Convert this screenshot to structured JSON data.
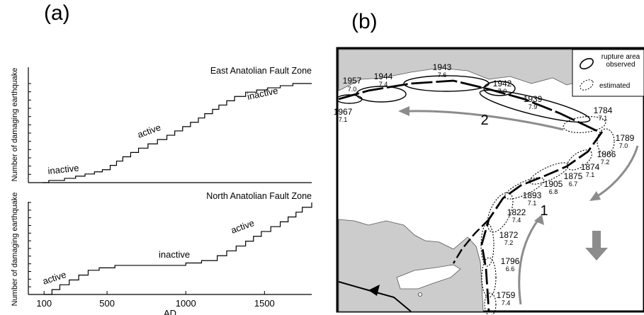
{
  "figure": {
    "panel_a_label": "(a)",
    "panel_b_label": "(b)"
  },
  "chart_data": [
    {
      "type": "line",
      "title": "East Anatolian Fault Zone",
      "ylabel": "Number of damaging earthquake",
      "xlabel": "AD",
      "xlim": [
        0,
        1800
      ],
      "x_ticks": [
        100,
        500,
        1000,
        1500
      ],
      "annotations": [
        {
          "text": "inactive",
          "x": 250,
          "y": 1
        },
        {
          "text": "active",
          "x": 750,
          "y": 11
        },
        {
          "text": "inactive",
          "x": 1450,
          "y": 21
        }
      ],
      "series": [
        {
          "values": [
            [
              90,
              0
            ],
            [
              130,
              0.5
            ],
            [
              230,
              1
            ],
            [
              300,
              1.5
            ],
            [
              360,
              2
            ],
            [
              420,
              2.5
            ],
            [
              470,
              3
            ],
            [
              520,
              4
            ],
            [
              560,
              5
            ],
            [
              600,
              6
            ],
            [
              650,
              7
            ],
            [
              700,
              8
            ],
            [
              760,
              9
            ],
            [
              820,
              10
            ],
            [
              880,
              11
            ],
            [
              930,
              12
            ],
            [
              980,
              13
            ],
            [
              1030,
              14
            ],
            [
              1080,
              15
            ],
            [
              1120,
              16
            ],
            [
              1170,
              17
            ],
            [
              1210,
              18
            ],
            [
              1260,
              19
            ],
            [
              1310,
              20
            ],
            [
              1380,
              21
            ],
            [
              1450,
              21.5
            ],
            [
              1520,
              22
            ],
            [
              1600,
              22.5
            ],
            [
              1680,
              23
            ],
            [
              1800,
              23
            ]
          ]
        }
      ]
    },
    {
      "type": "line",
      "title": "North Anatolian Fault Zone",
      "ylabel": "Number of damaging earthquake",
      "xlabel": "AD",
      "xlim": [
        0,
        1800
      ],
      "x_ticks": [
        100,
        500,
        1000,
        1500
      ],
      "tick_labels": [
        "100",
        "500",
        "1000",
        "1500"
      ],
      "annotations": [
        {
          "text": "active",
          "x": 200,
          "y": 3
        },
        {
          "text": "inactive",
          "x": 800,
          "y": 6
        },
        {
          "text": "active",
          "x": 1450,
          "y": 13
        }
      ],
      "series": [
        {
          "values": [
            [
              100,
              0
            ],
            [
              150,
              1
            ],
            [
              200,
              2
            ],
            [
              260,
              3
            ],
            [
              320,
              4
            ],
            [
              380,
              5
            ],
            [
              450,
              5.5
            ],
            [
              550,
              6
            ],
            [
              700,
              6
            ],
            [
              850,
              6
            ],
            [
              1000,
              6.5
            ],
            [
              1100,
              7
            ],
            [
              1200,
              8
            ],
            [
              1260,
              9
            ],
            [
              1320,
              10
            ],
            [
              1380,
              11
            ],
            [
              1430,
              12
            ],
            [
              1480,
              13
            ],
            [
              1540,
              14
            ],
            [
              1600,
              15
            ],
            [
              1650,
              16
            ],
            [
              1700,
              17
            ],
            [
              1740,
              18
            ],
            [
              1800,
              19
            ]
          ]
        }
      ]
    }
  ],
  "map": {
    "legend": {
      "observed_label": "rupture area observed",
      "estimated_label": "estimated"
    },
    "arrow_labels": [
      "2",
      "1"
    ],
    "events": [
      {
        "year": "1957",
        "mag": "7.0"
      },
      {
        "year": "1944",
        "mag": "7.4"
      },
      {
        "year": "1943",
        "mag": "7.6"
      },
      {
        "year": "1942",
        "mag": "7.0"
      },
      {
        "year": "1939",
        "mag": "7.9"
      },
      {
        "year": "1967",
        "mag": "7.1"
      },
      {
        "year": "1784",
        "mag": "7.1"
      },
      {
        "year": "1789",
        "mag": "7.0"
      },
      {
        "year": "1866",
        "mag": "7.2"
      },
      {
        "year": "1874",
        "mag": "7.1"
      },
      {
        "year": "1875",
        "mag": "6.7"
      },
      {
        "year": "1905",
        "mag": "6.8"
      },
      {
        "year": "1893",
        "mag": "7.1"
      },
      {
        "year": "1822",
        "mag": "7.4"
      },
      {
        "year": "1872",
        "mag": "7.2"
      },
      {
        "year": "1796",
        "mag": "6.6"
      },
      {
        "year": "1759",
        "mag": "7.4"
      }
    ]
  }
}
